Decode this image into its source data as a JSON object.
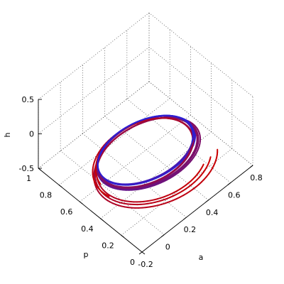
{
  "chart_data": {
    "type": "line3d",
    "title": "",
    "xlabel": "a",
    "ylabel": "p",
    "zlabel": "h",
    "xlim": [
      -0.2,
      0.8
    ],
    "ylim": [
      0,
      1
    ],
    "zlim": [
      -0.5,
      0.5
    ],
    "xticks": [
      "-0.2",
      "0",
      "0.2",
      "0.4",
      "0.6",
      "0.8"
    ],
    "yticks": [
      "0",
      "0.2",
      "0.4",
      "0.6",
      "0.8",
      "1"
    ],
    "zticks": [
      "-0.5",
      "0",
      "0.5"
    ],
    "grid": true,
    "colors": {
      "start": "#cc0000",
      "end": "#2b1fd6"
    },
    "series": [
      {
        "path": "spiral-trajectories",
        "count": 5,
        "description_points": [
          {
            "a": 0.28,
            "p": 0.5,
            "h": 0.0
          },
          {
            "a": 0.2,
            "p": 0.55,
            "h": 0.05
          },
          {
            "a": 0.35,
            "p": 0.45,
            "h": -0.05
          }
        ]
      }
    ]
  }
}
